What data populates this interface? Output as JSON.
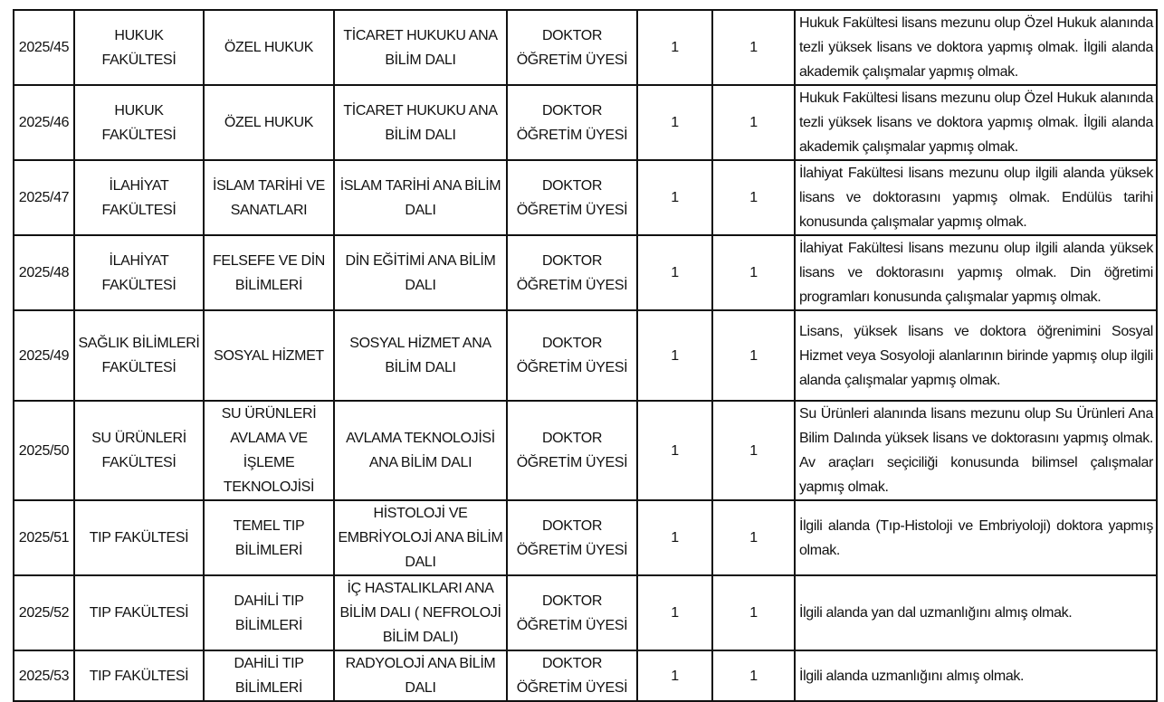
{
  "rows": [
    {
      "no": "2025/45",
      "faculty": "HUKUK FAKÜLTESİ",
      "department": "ÖZEL HUKUK",
      "division": "TİCARET HUKUKU ANA BİLİM DALI",
      "title": "DOKTOR ÖĞRETİM ÜYESİ",
      "degree": "1",
      "count": "1",
      "requirement": "Hukuk Fakültesi lisans mezunu olup Özel Hukuk alanında tezli yüksek lisans ve doktora yapmış olmak. İlgili alanda akademik çalışmalar yapmış olmak."
    },
    {
      "no": "2025/46",
      "faculty": "HUKUK FAKÜLTESİ",
      "department": "ÖZEL HUKUK",
      "division": "TİCARET HUKUKU ANA BİLİM DALI",
      "title": "DOKTOR ÖĞRETİM ÜYESİ",
      "degree": "1",
      "count": "1",
      "requirement": "Hukuk Fakültesi lisans mezunu olup Özel Hukuk alanında tezli yüksek lisans ve doktora yapmış olmak. İlgili alanda akademik çalışmalar yapmış olmak."
    },
    {
      "no": "2025/47",
      "faculty": "İLAHİYAT FAKÜLTESİ",
      "department": "İSLAM TARİHİ VE SANATLARI",
      "division": "İSLAM TARİHİ ANA BİLİM DALI",
      "title": "DOKTOR ÖĞRETİM ÜYESİ",
      "degree": "1",
      "count": "1",
      "requirement": "İlahiyat Fakültesi lisans mezunu olup ilgili alanda yüksek lisans ve doktorasını yapmış olmak. Endülüs tarihi konusunda çalışmalar yapmış olmak."
    },
    {
      "no": "2025/48",
      "faculty": "İLAHİYAT FAKÜLTESİ",
      "department": "FELSEFE VE DİN BİLİMLERİ",
      "division": "DİN EĞİTİMİ ANA BİLİM DALI",
      "title": "DOKTOR ÖĞRETİM ÜYESİ",
      "degree": "1",
      "count": "1",
      "requirement": "İlahiyat Fakültesi lisans mezunu olup ilgili alanda yüksek lisans ve doktorasını yapmış olmak. Din öğretimi programları konusunda çalışmalar yapmış olmak."
    },
    {
      "no": "2025/49",
      "faculty": "SAĞLIK BİLİMLERİ FAKÜLTESİ",
      "department": "SOSYAL HİZMET",
      "division": "SOSYAL HİZMET ANA BİLİM DALI",
      "title": "DOKTOR ÖĞRETİM ÜYESİ",
      "degree": "1",
      "count": "1",
      "requirement": "Lisans, yüksek lisans ve doktora öğrenimini Sosyal Hizmet veya Sosyoloji alanlarının birinde yapmış olup ilgili alanda çalışmalar yapmış olmak."
    },
    {
      "no": "2025/50",
      "faculty": "SU ÜRÜNLERİ FAKÜLTESİ",
      "department": "SU ÜRÜNLERİ AVLAMA VE İŞLEME TEKNOLOJİSİ",
      "division": "AVLAMA TEKNOLOJİSİ ANA BİLİM DALI",
      "title": "DOKTOR ÖĞRETİM ÜYESİ",
      "degree": "1",
      "count": "1",
      "requirement": "Su Ürünleri alanında lisans mezunu olup Su Ürünleri Ana Bilim Dalında yüksek lisans ve doktorasını yapmış olmak. Av araçları seçiciliği konusunda bilimsel çalışmalar yapmış olmak."
    },
    {
      "no": "2025/51",
      "faculty": "TIP FAKÜLTESİ",
      "department": "TEMEL TIP BİLİMLERİ",
      "division": "HİSTOLOJİ VE EMBRİYOLOJİ ANA BİLİM DALI",
      "title": "DOKTOR ÖĞRETİM ÜYESİ",
      "degree": "1",
      "count": "1",
      "requirement": " İlgili alanda (Tıp-Histoloji ve Embriyoloji) doktora yapmış olmak."
    },
    {
      "no": "2025/52",
      "faculty": "TIP FAKÜLTESİ",
      "department": "DAHİLİ TIP BİLİMLERİ",
      "division": "İÇ HASTALIKLARI ANA BİLİM DALI ( NEFROLOJİ BİLİM DALI)",
      "title": "DOKTOR ÖĞRETİM ÜYESİ",
      "degree": "1",
      "count": "1",
      "requirement": " İlgili alanda yan dal uzmanlığını almış olmak."
    },
    {
      "no": "2025/53",
      "faculty": "TIP FAKÜLTESİ",
      "department": "DAHİLİ TIP BİLİMLERİ",
      "division": "RADYOLOJİ ANA BİLİM DALI",
      "title": "DOKTOR ÖĞRETİM ÜYESİ",
      "degree": "1",
      "count": "1",
      "requirement": " İlgili alanda uzmanlığını almış olmak."
    }
  ]
}
